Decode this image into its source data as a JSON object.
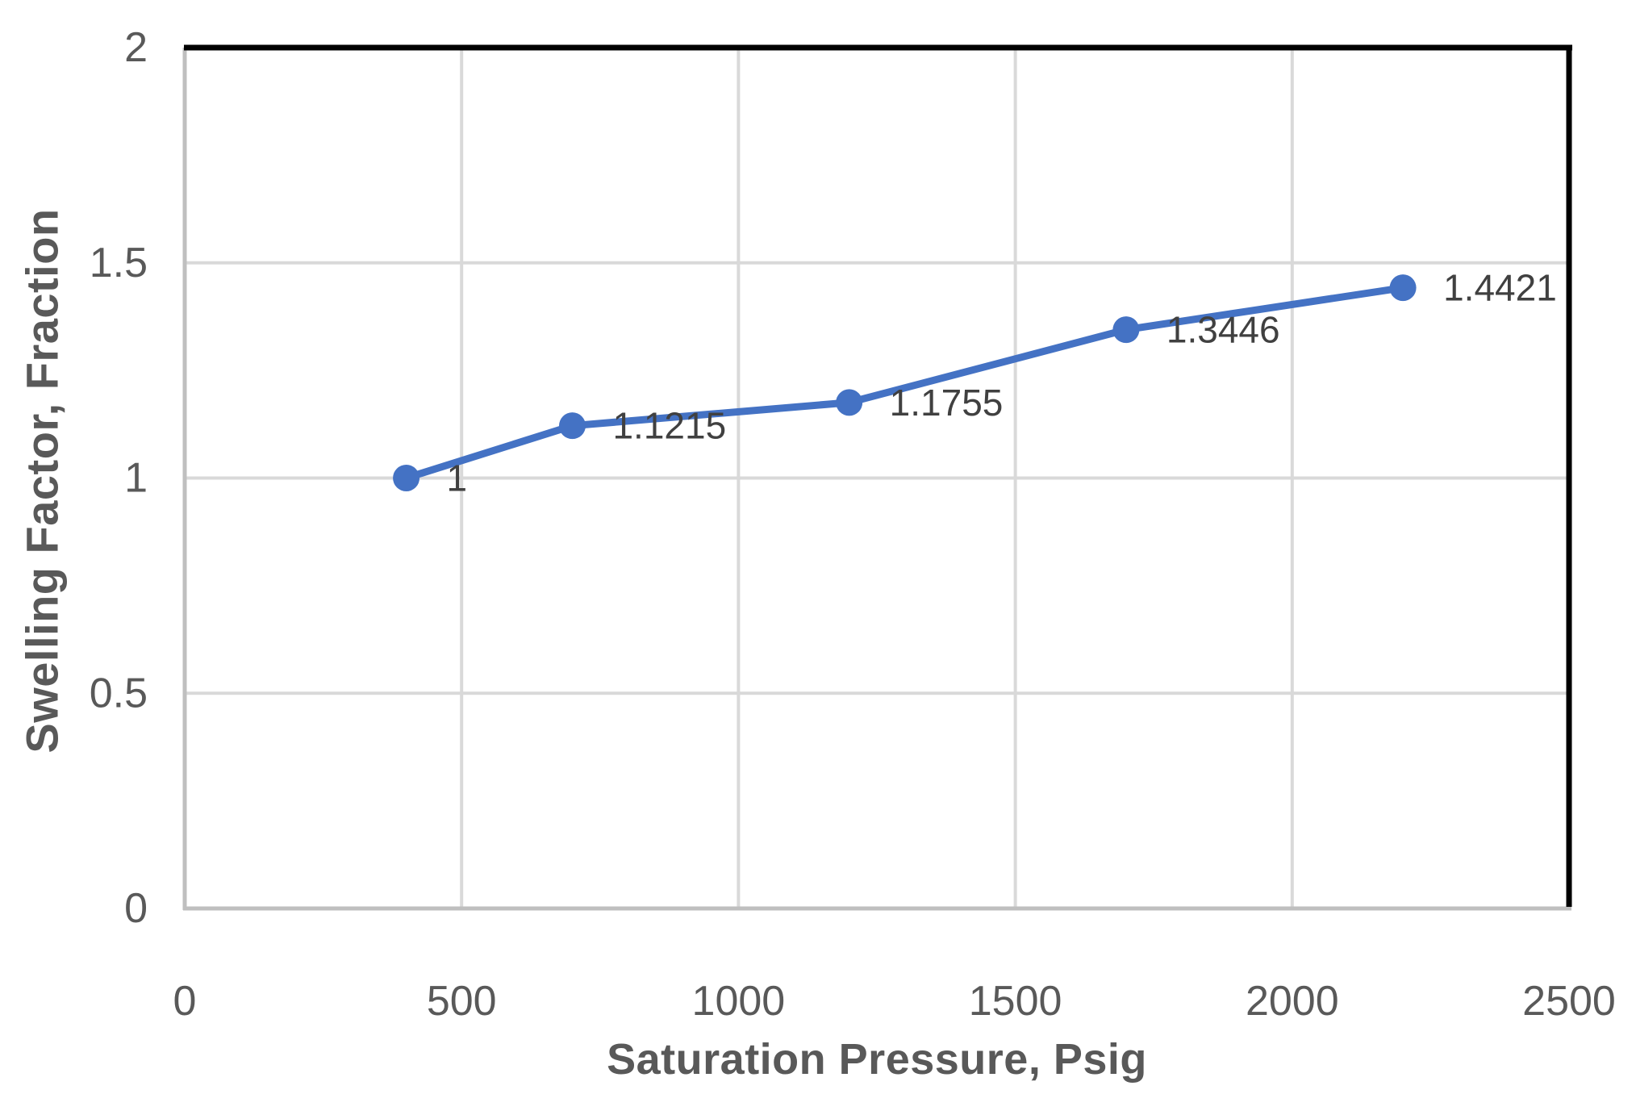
{
  "chart_data": {
    "type": "line",
    "title": "",
    "xlabel": "Saturation Pressure, Psig",
    "ylabel": "Swelling Factor, Fraction",
    "x": [
      400,
      700,
      1200,
      1700,
      2200
    ],
    "y": [
      1,
      1.1215,
      1.1755,
      1.3446,
      1.4421
    ],
    "point_labels": [
      "1",
      "1.1215",
      "1.1755",
      "1.3446",
      "1.4421"
    ],
    "xlim": [
      0,
      2500
    ],
    "ylim": [
      0,
      2
    ],
    "x_ticks": [
      0,
      500,
      1000,
      1500,
      2000,
      2500
    ],
    "x_tick_labels": [
      "0",
      "500",
      "1000",
      "1500",
      "2000",
      "2500"
    ],
    "y_ticks": [
      0,
      0.5,
      1,
      1.5,
      2
    ],
    "y_tick_labels": [
      "0",
      "0.5",
      "1",
      "1.5",
      "2"
    ],
    "grid": true,
    "legend": false,
    "marker": "circle",
    "data_label_position": "right",
    "colors": {
      "line": "#4472C4",
      "marker": "#4472C4",
      "gridline": "#D9D9D9",
      "axis_line": "#BFBFBF",
      "plot_border": "#000000",
      "tick_label": "#595959",
      "axis_title": "#595959",
      "data_label": "#404040",
      "background": "#FFFFFF"
    }
  }
}
